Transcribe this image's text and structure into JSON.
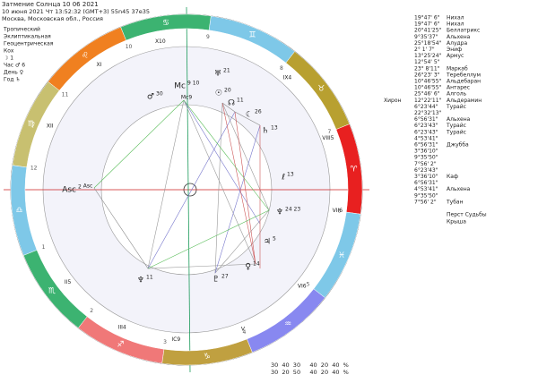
{
  "header": {
    "title": "Затмение Солнца 10 06 2021",
    "datetime": "10 июня 2021  Чт  13:52:32 (GMT+3) 55n45  37e35",
    "place": "Москва, Московская обл., Россия"
  },
  "settings": [
    "Тропический",
    "Эклиптикальная",
    "Геоцентрическая",
    "Кох",
    "☽  1",
    "Час ♂  6",
    "День ♀",
    "Год ♄"
  ],
  "signs": [
    "♈",
    "♉",
    "♊",
    "♋",
    "♌",
    "♍",
    "♎",
    "♏",
    "♐",
    "♑",
    "♒",
    "♓"
  ],
  "houses": [
    "X10",
    "XI",
    "XII",
    "Asc",
    "II5",
    "III4",
    "IC9",
    "V",
    "VI6",
    "VII6",
    "VIII5",
    "IX4",
    "Mc9"
  ],
  "house_numbers": [
    "10",
    "11",
    "12",
    "1",
    "2",
    "3",
    "4",
    "5",
    "6",
    "7",
    "8",
    "9"
  ],
  "planets": [
    {
      "glyph": "Mc",
      "deg": "9 10"
    },
    {
      "glyph": "♂",
      "deg": "30"
    },
    {
      "glyph": "♅",
      "deg": "21"
    },
    {
      "glyph": "☉",
      "deg": "20"
    },
    {
      "glyph": "☊",
      "deg": "11"
    },
    {
      "glyph": "☾",
      "deg": "26"
    },
    {
      "glyph": "♄",
      "deg": "13"
    },
    {
      "glyph": "ℓ",
      "deg": "13"
    },
    {
      "glyph": "♆",
      "deg": "24 23"
    },
    {
      "glyph": "♃",
      "deg": "5"
    },
    {
      "glyph": "♀",
      "deg": "14"
    },
    {
      "glyph": "♇",
      "deg": "27"
    },
    {
      "glyph": "♆",
      "deg": "11"
    },
    {
      "glyph": "Asc",
      "deg": "2"
    }
  ],
  "stars": {
    "rows": [
      {
        "deg": "19°47' 6\"",
        "name": "Нихал"
      },
      {
        "deg": "19°47' 6\"",
        "name": "Нихал"
      },
      {
        "deg": "20°41'25\"",
        "name": "Беллатрикс"
      },
      {
        "deg": "9°35'37\"",
        "name": "Альхена"
      },
      {
        "deg": "25°18'54\"",
        "name": "Алудра"
      },
      {
        "deg": "2° 1' 7\"",
        "name": "Эниф"
      },
      {
        "deg": "13°25'24\"",
        "name": "Армус"
      },
      {
        "deg": "12°54' 5\""
      },
      {
        "deg": "23° 8'11\"",
        "name": "Маркаб"
      },
      {
        "deg": "26°23' 3\"",
        "name": "Теребеллум"
      },
      {
        "deg": "10°46'55\"",
        "name": "Альдебаран"
      },
      {
        "deg": "10°46'55\"",
        "name": "Антарес"
      },
      {
        "deg": "25°46' 6\"",
        "name": "Алголь"
      },
      {
        "deg": "12°22'11\"",
        "name": "Альдерамин",
        "prefix": "Хирон"
      },
      {
        "deg": "6°23'44\"",
        "name": "Турайс"
      },
      {
        "deg": "22°32'13\""
      },
      {
        "deg": "6°56'31\"",
        "name": "Альхена"
      },
      {
        "deg": "6°23'43\"",
        "name": "Турайс"
      },
      {
        "deg": "6°23'43\"",
        "name": "Турайс"
      },
      {
        "deg": "4°53'41\""
      },
      {
        "deg": "6°56'31\"",
        "name": "Джубба"
      },
      {
        "deg": "3°36'10\""
      },
      {
        "deg": "9°35'50\""
      },
      {
        "deg": "7°56' 2\""
      },
      {
        "deg": "6°23'43\""
      },
      {
        "deg": "3°36'10\"",
        "name": "Каф"
      },
      {
        "deg": "6°56'31\""
      },
      {
        "deg": "4°53'41\"",
        "name": "Альхена"
      },
      {
        "deg": "9°35'50\""
      },
      {
        "deg": "7°56' 2\"",
        "name": "Тубан"
      }
    ],
    "footer": [
      "Перст Судьбы",
      "Крыша"
    ]
  },
  "elements": {
    "rows": [
      "30  40  30     40  20  40  %",
      "30  20  50     40  20  40  %"
    ]
  }
}
